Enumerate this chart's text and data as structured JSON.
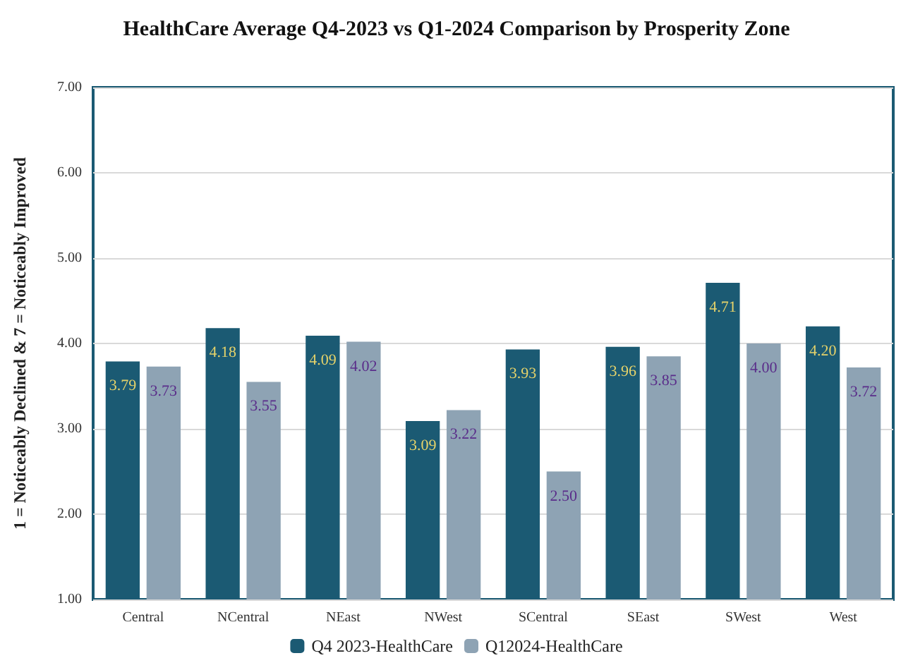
{
  "chart_data": {
    "type": "bar",
    "title": "HealthCare Average Q4-2023 vs Q1-2024 Comparison by Prosperity Zone",
    "ylabel": "1 = Noticeably Declined & 7 = Noticeably Improved",
    "categories": [
      "Central",
      "NCentral",
      "NEast",
      "NWest",
      "SCentral",
      "SEast",
      "SWest",
      "West"
    ],
    "series": [
      {
        "name": "Q4 2023-HealthCare",
        "color": "#1b5a73",
        "values": [
          3.79,
          4.18,
          4.09,
          3.09,
          3.93,
          3.96,
          4.71,
          4.2
        ],
        "value_labels": [
          "3.79",
          "4.18",
          "4.09",
          "3.09",
          "3.93",
          "3.96",
          "4.71",
          "4.20"
        ]
      },
      {
        "name": "Q12024-HealthCare",
        "color": "#8ea3b4",
        "values": [
          3.73,
          3.55,
          4.02,
          3.22,
          2.5,
          3.85,
          4.0,
          3.72
        ],
        "value_labels": [
          "3.73",
          "3.55",
          "4.02",
          "3.22",
          "2.50",
          "3.85",
          "4.00",
          "3.72"
        ]
      }
    ],
    "ylim": [
      1,
      7
    ],
    "yticks": [
      {
        "value": 1,
        "label": "1.00"
      },
      {
        "value": 2,
        "label": "2.00"
      },
      {
        "value": 3,
        "label": "3.00"
      },
      {
        "value": 4,
        "label": "4.00"
      },
      {
        "value": 5,
        "label": "5.00"
      },
      {
        "value": 6,
        "label": "6.00"
      },
      {
        "value": 7,
        "label": "7.00"
      }
    ],
    "grid": "y",
    "legend": "bottom"
  }
}
